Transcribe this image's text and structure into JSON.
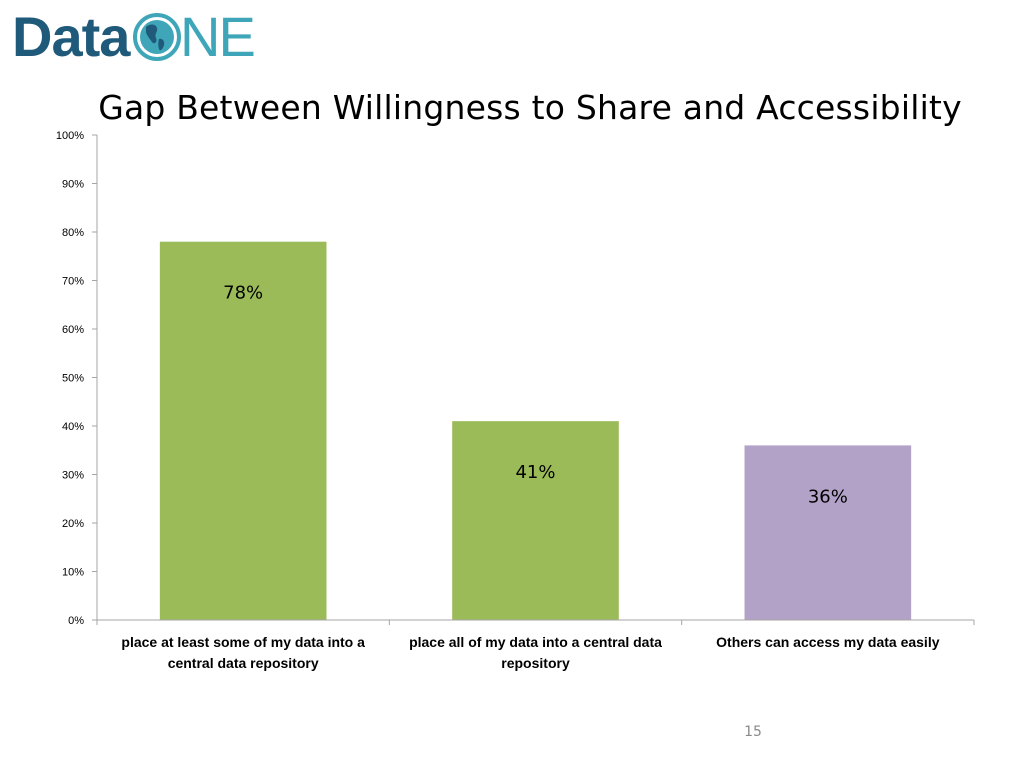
{
  "logo": {
    "part1": "Data",
    "part2": "NE"
  },
  "slide": {
    "number": "15"
  },
  "colors": {
    "green_bar": "#9bbb59",
    "purple_bar": "#b3a2c7",
    "axis": "#a6a6a6",
    "logo_dark": "#1f5a7a",
    "logo_light": "#3ea6b8"
  },
  "chart_data": {
    "type": "bar",
    "title": "Gap Between Willingness to Share and Accessibility",
    "categories": [
      [
        "place at least some of my data into a",
        "central data repository"
      ],
      [
        "place all of my data into a central data",
        "repository"
      ],
      [
        "Others can access my data easily"
      ]
    ],
    "values": [
      78,
      41,
      36
    ],
    "value_labels": [
      "78%",
      "41%",
      "36%"
    ],
    "bar_colors": [
      "#9bbb59",
      "#9bbb59",
      "#b3a2c7"
    ],
    "yticks": [
      "0%",
      "10%",
      "20%",
      "30%",
      "40%",
      "50%",
      "60%",
      "70%",
      "80%",
      "90%",
      "100%"
    ],
    "ylim": [
      0,
      100
    ],
    "ystep": 10,
    "grid": false,
    "legend": "none",
    "xlabel": "",
    "ylabel": ""
  }
}
